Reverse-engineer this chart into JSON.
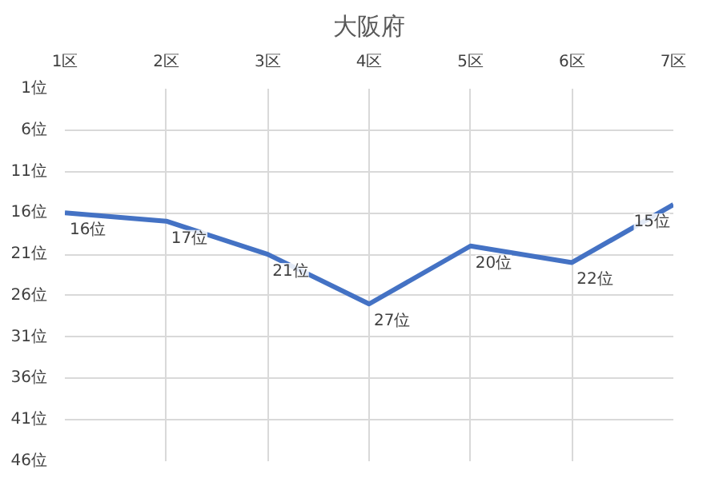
{
  "chart_data": {
    "type": "line",
    "title": "大阪府",
    "categories": [
      "1区",
      "2区",
      "3区",
      "4区",
      "5区",
      "6区",
      "7区"
    ],
    "series": [
      {
        "color": "#4472c4",
        "values": [
          16,
          17,
          21,
          27,
          20,
          22,
          15
        ],
        "value_labels": [
          "16位",
          "17位",
          "21位",
          "27位",
          "20位",
          "22位",
          "15位"
        ]
      }
    ],
    "ylim": [
      46,
      1
    ],
    "yticks": [
      {
        "value": 1,
        "label": "1位"
      },
      {
        "value": 6,
        "label": "6位"
      },
      {
        "value": 11,
        "label": "11位"
      },
      {
        "value": 16,
        "label": "16位"
      },
      {
        "value": 21,
        "label": "21位"
      },
      {
        "value": 26,
        "label": "26位"
      },
      {
        "value": 31,
        "label": "31位"
      },
      {
        "value": 36,
        "label": "36位"
      },
      {
        "value": 41,
        "label": "41位"
      },
      {
        "value": 46,
        "label": "46位"
      }
    ],
    "grid": true,
    "marker": "none",
    "line_style": "solid"
  }
}
